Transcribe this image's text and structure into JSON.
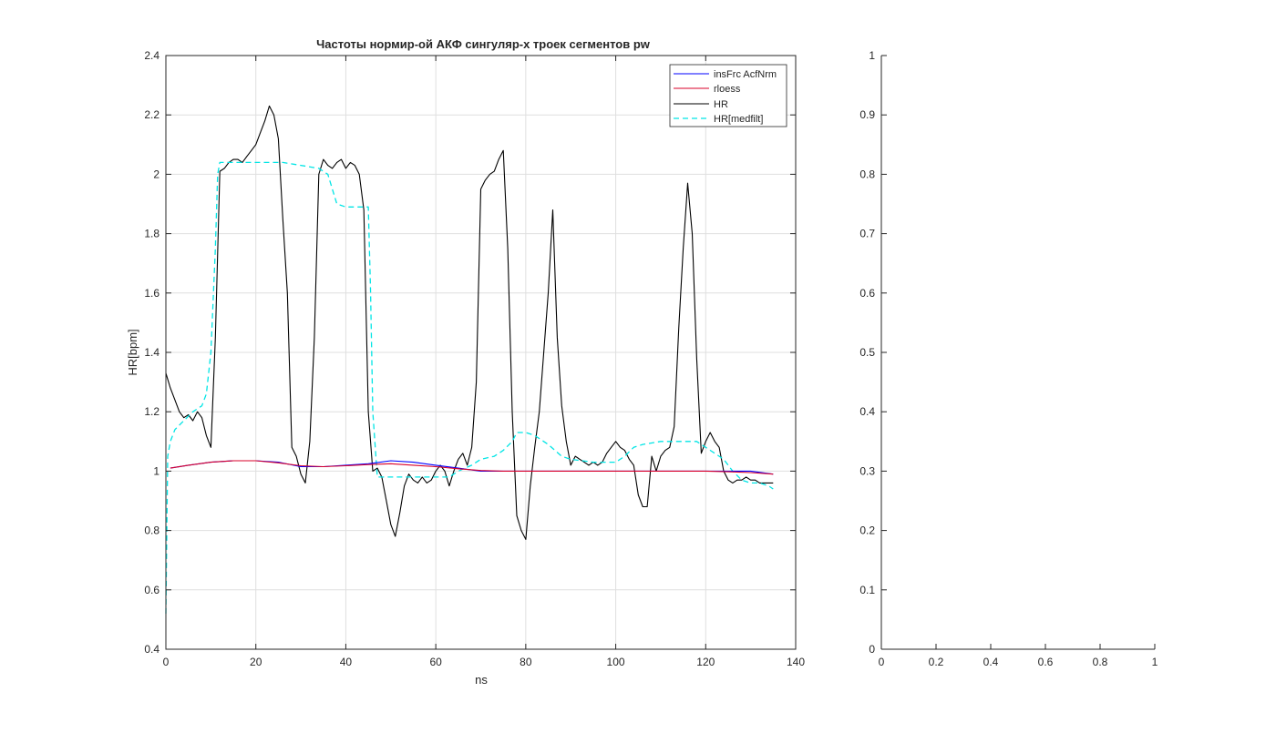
{
  "figure": {
    "background": "#ffffff"
  },
  "chart_data": [
    {
      "type": "line",
      "title": "Частоты нормир-ой АКФ сингуляр-х троек сегментов pw",
      "xlabel": "ns",
      "ylabel": "HR[bpm]",
      "xlim": [
        0,
        140
      ],
      "ylim": [
        0.4,
        2.4
      ],
      "xticks": [
        0,
        20,
        40,
        60,
        80,
        100,
        120,
        140
      ],
      "yticks": [
        0.4,
        0.6,
        0.8,
        1,
        1.2,
        1.4,
        1.6,
        1.8,
        2,
        2.2,
        2.4
      ],
      "xtick_labels": [
        "0",
        "20",
        "40",
        "60",
        "80",
        "100",
        "120",
        "140"
      ],
      "ytick_labels": [
        "0.4",
        "0.6",
        "0.8",
        "1",
        "1.2",
        "1.4",
        "1.6",
        "1.8",
        "2",
        "2.2",
        "2.4"
      ],
      "grid": true,
      "legend_position": "top-right",
      "series": [
        {
          "name": "insFrc AcfNrm",
          "color": "#0000ff",
          "dash": "solid",
          "x": [
            1,
            5,
            10,
            15,
            20,
            25,
            30,
            35,
            40,
            45,
            50,
            55,
            60,
            65,
            70,
            75,
            80,
            85,
            90,
            95,
            100,
            105,
            110,
            115,
            120,
            125,
            130,
            135
          ],
          "y": [
            1.01,
            1.02,
            1.03,
            1.035,
            1.035,
            1.03,
            1.015,
            1.015,
            1.02,
            1.025,
            1.035,
            1.03,
            1.02,
            1.01,
            1.0,
            1.0,
            1.0,
            1.0,
            1.0,
            1.0,
            1.0,
            1.0,
            1.0,
            1.0,
            1.0,
            1.0,
            1.0,
            0.99
          ]
        },
        {
          "name": "rloess",
          "color": "#d9002a",
          "dash": "solid",
          "x": [
            1,
            5,
            10,
            15,
            20,
            25,
            30,
            35,
            40,
            45,
            50,
            55,
            60,
            65,
            70,
            75,
            80,
            85,
            90,
            95,
            100,
            105,
            110,
            115,
            120,
            125,
            130,
            135
          ],
          "y": [
            1.01,
            1.02,
            1.03,
            1.035,
            1.035,
            1.028,
            1.018,
            1.015,
            1.018,
            1.022,
            1.025,
            1.02,
            1.015,
            1.008,
            1.002,
            1.0,
            1.0,
            1.0,
            1.0,
            1.0,
            1.0,
            1.0,
            1.0,
            1.0,
            1.0,
            0.998,
            0.995,
            0.99
          ]
        },
        {
          "name": "HR",
          "color": "#000000",
          "dash": "solid",
          "x": [
            0,
            1,
            2,
            3,
            4,
            5,
            6,
            7,
            8,
            9,
            10,
            11,
            12,
            13,
            14,
            15,
            16,
            17,
            18,
            19,
            20,
            21,
            22,
            23,
            24,
            25,
            26,
            27,
            28,
            29,
            30,
            31,
            32,
            33,
            34,
            35,
            36,
            37,
            38,
            39,
            40,
            41,
            42,
            43,
            44,
            45,
            46,
            47,
            48,
            49,
            50,
            51,
            52,
            53,
            54,
            55,
            56,
            57,
            58,
            59,
            60,
            61,
            62,
            63,
            64,
            65,
            66,
            67,
            68,
            69,
            70,
            71,
            72,
            73,
            74,
            75,
            76,
            77,
            78,
            79,
            80,
            81,
            82,
            83,
            84,
            85,
            86,
            87,
            88,
            89,
            90,
            91,
            92,
            93,
            94,
            95,
            96,
            97,
            98,
            99,
            100,
            101,
            102,
            103,
            104,
            105,
            106,
            107,
            108,
            109,
            110,
            111,
            112,
            113,
            114,
            115,
            116,
            117,
            118,
            119,
            120,
            121,
            122,
            123,
            124,
            125,
            126,
            127,
            128,
            129,
            130,
            131,
            132,
            133,
            134,
            135
          ],
          "y": [
            1.33,
            1.28,
            1.24,
            1.2,
            1.18,
            1.19,
            1.17,
            1.2,
            1.18,
            1.12,
            1.08,
            1.45,
            2.01,
            2.02,
            2.04,
            2.05,
            2.05,
            2.04,
            2.06,
            2.08,
            2.1,
            2.14,
            2.18,
            2.23,
            2.2,
            2.12,
            1.85,
            1.6,
            1.08,
            1.05,
            0.99,
            0.96,
            1.1,
            1.45,
            2.0,
            2.05,
            2.03,
            2.02,
            2.04,
            2.05,
            2.02,
            2.04,
            2.03,
            2.0,
            1.88,
            1.2,
            1.0,
            1.01,
            0.98,
            0.9,
            0.82,
            0.78,
            0.86,
            0.95,
            0.99,
            0.97,
            0.96,
            0.98,
            0.96,
            0.97,
            1.0,
            1.02,
            1.0,
            0.95,
            1.0,
            1.04,
            1.06,
            1.02,
            1.08,
            1.3,
            1.95,
            1.98,
            2.0,
            2.01,
            2.05,
            2.08,
            1.75,
            1.2,
            0.85,
            0.8,
            0.77,
            0.95,
            1.08,
            1.2,
            1.4,
            1.6,
            1.88,
            1.45,
            1.22,
            1.1,
            1.02,
            1.05,
            1.04,
            1.03,
            1.02,
            1.03,
            1.02,
            1.03,
            1.06,
            1.08,
            1.1,
            1.08,
            1.07,
            1.04,
            1.02,
            0.92,
            0.88,
            0.88,
            1.05,
            1.0,
            1.05,
            1.07,
            1.08,
            1.15,
            1.48,
            1.75,
            1.97,
            1.8,
            1.38,
            1.06,
            1.1,
            1.13,
            1.1,
            1.08,
            1.0,
            0.97,
            0.96,
            0.97,
            0.97,
            0.98,
            0.97,
            0.97,
            0.96,
            0.96,
            0.96,
            0.96
          ]
        },
        {
          "name": "HR[medfilt]",
          "color": "#00e5e5",
          "dash": "dashed",
          "x": [
            0,
            0.4,
            1,
            2,
            4,
            6,
            8,
            9,
            10,
            11,
            11.5,
            12,
            14,
            20,
            26,
            30,
            34,
            36,
            38,
            40,
            42,
            44,
            45,
            45.5,
            46,
            47,
            50,
            55,
            60,
            63,
            65,
            68,
            70,
            73,
            75,
            77,
            78,
            80,
            82,
            85,
            88,
            90,
            95,
            100,
            102,
            104,
            106,
            110,
            115,
            118,
            120,
            122,
            124,
            126,
            128,
            130,
            132,
            134,
            135
          ],
          "y": [
            0.52,
            1.05,
            1.1,
            1.14,
            1.17,
            1.2,
            1.22,
            1.26,
            1.4,
            1.75,
            2.0,
            2.04,
            2.04,
            2.04,
            2.04,
            2.03,
            2.02,
            2.0,
            1.9,
            1.89,
            1.89,
            1.89,
            1.89,
            1.6,
            1.2,
            0.98,
            0.98,
            0.98,
            0.98,
            0.98,
            1.0,
            1.02,
            1.04,
            1.05,
            1.07,
            1.1,
            1.13,
            1.13,
            1.12,
            1.09,
            1.05,
            1.04,
            1.03,
            1.03,
            1.05,
            1.08,
            1.09,
            1.1,
            1.1,
            1.1,
            1.08,
            1.06,
            1.04,
            1.0,
            0.97,
            0.96,
            0.96,
            0.95,
            0.94
          ]
        }
      ]
    },
    {
      "type": "line",
      "title": "",
      "xlabel": "",
      "ylabel": "",
      "xlim": [
        0,
        1
      ],
      "ylim": [
        0,
        1
      ],
      "xticks": [
        0,
        0.2,
        0.4,
        0.6,
        0.8,
        1
      ],
      "yticks": [
        0,
        0.1,
        0.2,
        0.3,
        0.4,
        0.5,
        0.6,
        0.7,
        0.8,
        0.9,
        1
      ],
      "xtick_labels": [
        "0",
        "0.2",
        "0.4",
        "0.6",
        "0.8",
        "1"
      ],
      "ytick_labels": [
        "0",
        "0.1",
        "0.2",
        "0.3",
        "0.4",
        "0.5",
        "0.6",
        "0.7",
        "0.8",
        "0.9",
        "1"
      ],
      "grid": false,
      "series": []
    }
  ]
}
